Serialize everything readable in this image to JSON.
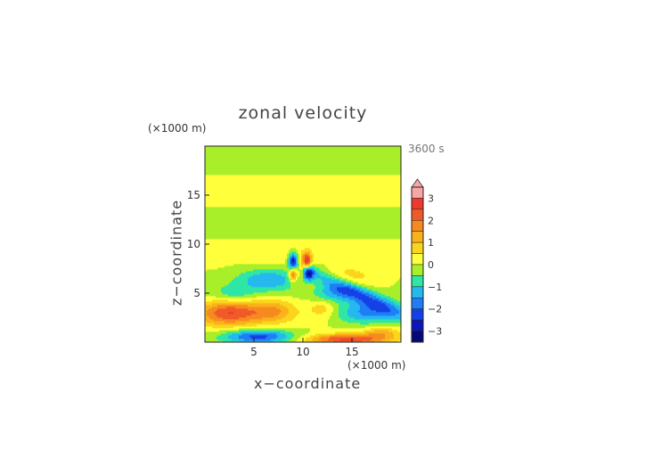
{
  "chart_data": {
    "type": "heatmap",
    "title": "zonal velocity",
    "xlabel": "x−coordinate",
    "ylabel": "z−coordinate",
    "x_unit": "(×1000 m)",
    "y_unit": "(×1000 m)",
    "time_label": "3600 s",
    "xlim": [
      0,
      20
    ],
    "ylim": [
      0,
      20
    ],
    "x_ticks": [
      {
        "value": 5,
        "label": "5"
      },
      {
        "value": 10,
        "label": "10"
      },
      {
        "value": 15,
        "label": "15"
      }
    ],
    "y_ticks": [
      {
        "value": 5,
        "label": "5"
      },
      {
        "value": 10,
        "label": "10"
      },
      {
        "value": 15,
        "label": "15"
      }
    ],
    "colorbar": {
      "range": [
        -3.5,
        3.5
      ],
      "extend": "max",
      "tick_labels": [
        {
          "value": 3,
          "label": "3"
        },
        {
          "value": 2,
          "label": "2"
        },
        {
          "value": 1,
          "label": "1"
        },
        {
          "value": 0,
          "label": "0"
        },
        {
          "value": -1,
          "label": "−1"
        },
        {
          "value": -2,
          "label": "−2"
        },
        {
          "value": -3,
          "label": "−3"
        }
      ],
      "levels": [
        {
          "min": 3.0,
          "color": "#f7a6a6"
        },
        {
          "min": 2.5,
          "color": "#ee3a2c"
        },
        {
          "min": 2.0,
          "color": "#f05a28"
        },
        {
          "min": 1.5,
          "color": "#f68a1f"
        },
        {
          "min": 1.0,
          "color": "#f9b21a"
        },
        {
          "min": 0.5,
          "color": "#fbd41c"
        },
        {
          "min": 0.0,
          "color": "#ffff3c"
        },
        {
          "min": -0.5,
          "color": "#a8ef2a"
        },
        {
          "min": -1.0,
          "color": "#2ee6a6"
        },
        {
          "min": -1.5,
          "color": "#25b9ee"
        },
        {
          "min": -2.0,
          "color": "#1f7ef5"
        },
        {
          "min": -2.5,
          "color": "#1540e6"
        },
        {
          "min": -3.0,
          "color": "#0d16b8"
        },
        {
          "min": -99,
          "color": "#050a78"
        }
      ]
    },
    "description": "Contour-filled field of zonal velocity (m/s) on an x-z section at 3600 s, antisymmetric about x=10 km: positive (orange/red) at low levels left of center and near the surface right of center, negative (blue) along a tilted band from the central peak down to the right and near the surface left of center; weak alternating bands aloft."
  }
}
